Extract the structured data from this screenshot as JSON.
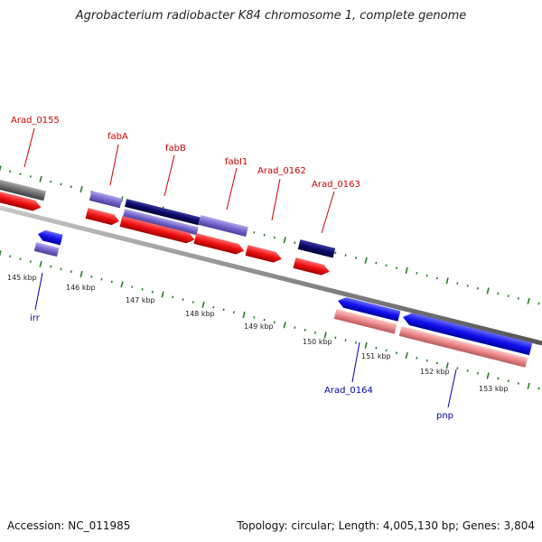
{
  "title": "Agrobacterium radiobacter K84 chromosome 1, complete genome",
  "footer": {
    "accession": "Accession: NC_011985",
    "summary": "Topology: circular; Length: 4,005,130 bp; Genes: 3,804"
  },
  "colors": {
    "top_label": "#cc0000",
    "bottom_label": "#0000aa",
    "tick": "#2a7a2a",
    "backbone": "#8c8c8c",
    "gene_red": "#ee1111",
    "gene_blue": "#1111ee",
    "gene_purple": "#7766cc",
    "gene_navy": "#0a0a66",
    "gene_pink": "#e88888",
    "gene_gray": "#6f6f6f"
  },
  "scale_labels": [
    "145 kbp",
    "146 kbp",
    "147 kbp",
    "148 kbp",
    "149 kbp",
    "150 kbp",
    "151 kbp",
    "152 kbp",
    "153 kbp"
  ],
  "gene_labels": {
    "top": [
      "Arad_0155",
      "fabA",
      "fabB",
      "fabI1",
      "Arad_0162",
      "Arad_0163"
    ],
    "bottom": [
      "irr",
      "Arad_0164",
      "pnp"
    ]
  }
}
